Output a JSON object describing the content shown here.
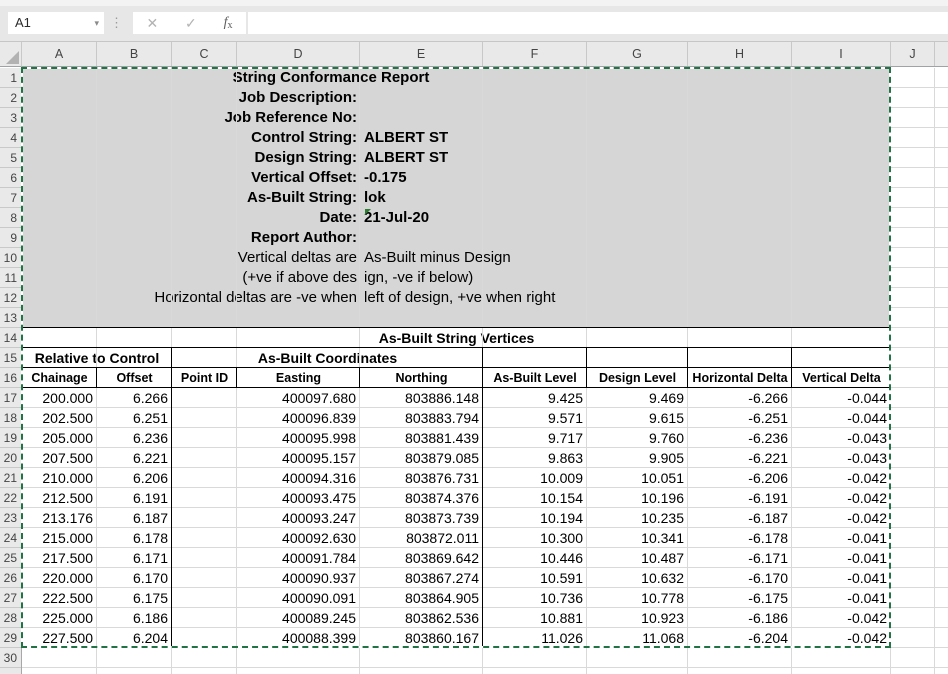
{
  "formula_bar": {
    "name_box": "A1",
    "formula_value": ""
  },
  "icons": {
    "name_box_dropdown": "▾",
    "separator_dots": "⋮",
    "cancel": "✕",
    "enter": "✓",
    "fx_f": "f",
    "fx_x": "x"
  },
  "grid": {
    "column_letters": [
      "A",
      "B",
      "C",
      "D",
      "E",
      "F",
      "G",
      "H",
      "I",
      "J"
    ],
    "row_numbers": [
      "1",
      "2",
      "3",
      "4",
      "5",
      "6",
      "7",
      "8",
      "9",
      "10",
      "11",
      "12",
      "13",
      "14",
      "15",
      "16",
      "17",
      "18",
      "19",
      "20",
      "21",
      "22",
      "23",
      "24",
      "25",
      "26",
      "27",
      "28",
      "29",
      "30"
    ]
  },
  "report": {
    "title": "String Conformance Report",
    "fields": [
      {
        "label": "Job Description:",
        "value": "",
        "bold": true,
        "indicator": false
      },
      {
        "label": "Job Reference No:",
        "value": "",
        "bold": true,
        "indicator": false
      },
      {
        "label": "Control String:",
        "value": "ALBERT ST",
        "bold": true,
        "indicator": false
      },
      {
        "label": "Design String:",
        "value": "ALBERT ST",
        "bold": true,
        "indicator": false
      },
      {
        "label": "Vertical Offset:",
        "value": "-0.175",
        "bold": true,
        "indicator": false
      },
      {
        "label": "As-Built String:",
        "value": "lok",
        "bold": true,
        "indicator": false
      },
      {
        "label": "Date:",
        "value": "21-Jul-20",
        "bold": true,
        "indicator": true
      },
      {
        "label": "Report Author:",
        "value": "",
        "bold": true,
        "indicator": false
      },
      {
        "label": "Vertical deltas are",
        "value": "As-Built minus Design",
        "bold": false,
        "indicator": false
      },
      {
        "label": "(+ve if above des",
        "value": "ign, -ve if below)",
        "bold": false,
        "indicator": false
      },
      {
        "label": "Horizontal deltas are -ve when",
        "value": "left of design, +ve when right",
        "bold": false,
        "indicator": false
      }
    ]
  },
  "table": {
    "section_title": "As-Built String Vertices",
    "group_headers": [
      "Relative to Control",
      "As-Built Coordinates"
    ],
    "columns": [
      "Chainage",
      "Offset",
      "Point ID",
      "Easting",
      "Northing",
      "As-Built Level",
      "Design Level",
      "Horizontal Delta",
      "Vertical Delta"
    ],
    "rows": [
      [
        "200.000",
        "6.266",
        "",
        "400097.680",
        "803886.148",
        "9.425",
        "9.469",
        "-6.266",
        "-0.044"
      ],
      [
        "202.500",
        "6.251",
        "",
        "400096.839",
        "803883.794",
        "9.571",
        "9.615",
        "-6.251",
        "-0.044"
      ],
      [
        "205.000",
        "6.236",
        "",
        "400095.998",
        "803881.439",
        "9.717",
        "9.760",
        "-6.236",
        "-0.043"
      ],
      [
        "207.500",
        "6.221",
        "",
        "400095.157",
        "803879.085",
        "9.863",
        "9.905",
        "-6.221",
        "-0.043"
      ],
      [
        "210.000",
        "6.206",
        "",
        "400094.316",
        "803876.731",
        "10.009",
        "10.051",
        "-6.206",
        "-0.042"
      ],
      [
        "212.500",
        "6.191",
        "",
        "400093.475",
        "803874.376",
        "10.154",
        "10.196",
        "-6.191",
        "-0.042"
      ],
      [
        "213.176",
        "6.187",
        "",
        "400093.247",
        "803873.739",
        "10.194",
        "10.235",
        "-6.187",
        "-0.042"
      ],
      [
        "215.000",
        "6.178",
        "",
        "400092.630",
        "803872.011",
        "10.300",
        "10.341",
        "-6.178",
        "-0.041"
      ],
      [
        "217.500",
        "6.171",
        "",
        "400091.784",
        "803869.642",
        "10.446",
        "10.487",
        "-6.171",
        "-0.041"
      ],
      [
        "220.000",
        "6.170",
        "",
        "400090.937",
        "803867.274",
        "10.591",
        "10.632",
        "-6.170",
        "-0.041"
      ],
      [
        "222.500",
        "6.175",
        "",
        "400090.091",
        "803864.905",
        "10.736",
        "10.778",
        "-6.175",
        "-0.041"
      ],
      [
        "225.000",
        "6.186",
        "",
        "400089.245",
        "803862.536",
        "10.881",
        "10.923",
        "-6.186",
        "-0.042"
      ],
      [
        "227.500",
        "6.204",
        "",
        "400088.399",
        "803860.167",
        "11.026",
        "11.068",
        "-6.204",
        "-0.042"
      ]
    ]
  },
  "colors": {
    "ants_green": "#217346",
    "report_fill": "#D6D6D6",
    "indicator_green": "#2E7D32"
  }
}
